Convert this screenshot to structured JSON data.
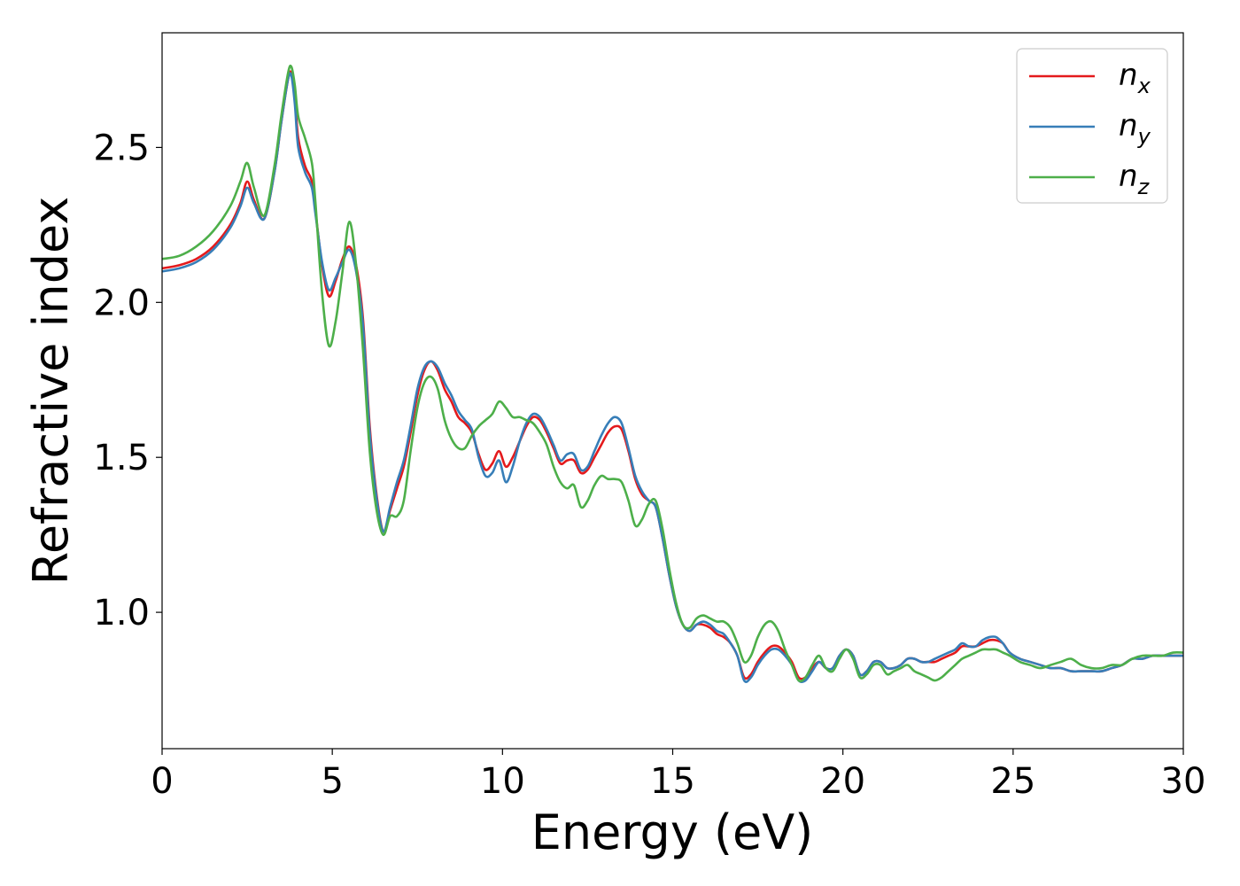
{
  "chart_data": {
    "type": "line",
    "title": "",
    "xlabel": "Energy (eV)",
    "ylabel": "Refractive index",
    "xlim": [
      0,
      30
    ],
    "ylim": [
      0.56,
      2.87
    ],
    "xticks": [
      0,
      5,
      10,
      15,
      20,
      25,
      30
    ],
    "yticks": [
      1.0,
      1.5,
      2.0,
      2.5
    ],
    "xtick_labels": [
      "0",
      "5",
      "10",
      "15",
      "20",
      "25",
      "30"
    ],
    "ytick_labels": [
      "1.0",
      "1.5",
      "2.0",
      "2.5"
    ],
    "grid": false,
    "legend_position": "top-right",
    "series": [
      {
        "name": "n",
        "subscript": "x",
        "color": "#e41a1c",
        "x": [
          0,
          0.5,
          1,
          1.5,
          2,
          2.3,
          2.5,
          2.7,
          3,
          3.3,
          3.5,
          3.7,
          3.8,
          3.9,
          4,
          4.2,
          4.4,
          4.5,
          4.7,
          4.9,
          5.1,
          5.3,
          5.5,
          5.7,
          5.9,
          6.1,
          6.3,
          6.5,
          6.7,
          6.9,
          7.1,
          7.3,
          7.5,
          7.7,
          7.9,
          8.1,
          8.3,
          8.5,
          8.7,
          8.9,
          9.1,
          9.3,
          9.5,
          9.7,
          9.9,
          10.1,
          10.3,
          10.5,
          10.7,
          10.9,
          11.1,
          11.3,
          11.5,
          11.7,
          11.9,
          12.1,
          12.3,
          12.5,
          12.7,
          12.9,
          13.1,
          13.3,
          13.5,
          13.7,
          13.9,
          14.1,
          14.3,
          14.5,
          14.7,
          14.9,
          15.1,
          15.3,
          15.5,
          15.7,
          15.9,
          16.1,
          16.3,
          16.5,
          16.7,
          16.9,
          17.1,
          17.3,
          17.5,
          17.7,
          17.9,
          18.1,
          18.3,
          18.5,
          18.7,
          18.9,
          19.1,
          19.3,
          19.5,
          19.7,
          19.9,
          20.1,
          20.3,
          20.5,
          20.7,
          20.9,
          21.1,
          21.3,
          21.5,
          21.7,
          21.9,
          22.1,
          22.3,
          22.5,
          22.7,
          22.9,
          23.1,
          23.3,
          23.5,
          23.7,
          23.9,
          24.1,
          24.3,
          24.5,
          24.7,
          24.9,
          25.2,
          25.5,
          25.8,
          26.1,
          26.4,
          26.7,
          27,
          27.3,
          27.6,
          27.9,
          28.2,
          28.5,
          28.8,
          29.1,
          29.4,
          29.7,
          30
        ],
        "y": [
          2.11,
          2.12,
          2.14,
          2.18,
          2.25,
          2.32,
          2.39,
          2.33,
          2.27,
          2.42,
          2.58,
          2.72,
          2.74,
          2.66,
          2.53,
          2.44,
          2.39,
          2.3,
          2.12,
          2.02,
          2.07,
          2.14,
          2.18,
          2.12,
          1.95,
          1.6,
          1.38,
          1.26,
          1.33,
          1.4,
          1.47,
          1.58,
          1.7,
          1.78,
          1.81,
          1.78,
          1.72,
          1.68,
          1.63,
          1.61,
          1.58,
          1.51,
          1.46,
          1.48,
          1.52,
          1.47,
          1.5,
          1.55,
          1.6,
          1.63,
          1.62,
          1.58,
          1.53,
          1.48,
          1.49,
          1.49,
          1.45,
          1.46,
          1.5,
          1.54,
          1.58,
          1.6,
          1.59,
          1.52,
          1.43,
          1.38,
          1.36,
          1.34,
          1.24,
          1.12,
          1.02,
          0.96,
          0.94,
          0.96,
          0.96,
          0.95,
          0.93,
          0.92,
          0.9,
          0.86,
          0.79,
          0.8,
          0.84,
          0.87,
          0.89,
          0.89,
          0.87,
          0.84,
          0.79,
          0.79,
          0.82,
          0.84,
          0.82,
          0.82,
          0.86,
          0.88,
          0.86,
          0.8,
          0.81,
          0.84,
          0.84,
          0.82,
          0.82,
          0.83,
          0.85,
          0.85,
          0.84,
          0.84,
          0.84,
          0.85,
          0.86,
          0.87,
          0.89,
          0.89,
          0.89,
          0.9,
          0.91,
          0.91,
          0.9,
          0.87,
          0.85,
          0.84,
          0.83,
          0.82,
          0.82,
          0.81,
          0.81,
          0.81,
          0.81,
          0.82,
          0.83,
          0.85,
          0.85,
          0.86,
          0.86,
          0.86,
          0.86
        ]
      },
      {
        "name": "n",
        "subscript": "y",
        "color": "#377eb8",
        "x": [
          0,
          0.5,
          1,
          1.5,
          2,
          2.3,
          2.5,
          2.7,
          3,
          3.3,
          3.5,
          3.7,
          3.8,
          3.9,
          4,
          4.2,
          4.4,
          4.5,
          4.7,
          4.9,
          5.1,
          5.3,
          5.5,
          5.7,
          5.9,
          6.1,
          6.3,
          6.5,
          6.7,
          6.9,
          7.1,
          7.3,
          7.5,
          7.7,
          7.9,
          8.1,
          8.3,
          8.5,
          8.7,
          8.9,
          9.1,
          9.3,
          9.5,
          9.7,
          9.9,
          10.1,
          10.3,
          10.5,
          10.7,
          10.9,
          11.1,
          11.3,
          11.5,
          11.7,
          11.9,
          12.1,
          12.3,
          12.5,
          12.7,
          12.9,
          13.1,
          13.3,
          13.5,
          13.7,
          13.9,
          14.1,
          14.3,
          14.5,
          14.7,
          14.9,
          15.1,
          15.3,
          15.5,
          15.7,
          15.9,
          16.1,
          16.3,
          16.5,
          16.7,
          16.9,
          17.1,
          17.3,
          17.5,
          17.7,
          17.9,
          18.1,
          18.3,
          18.5,
          18.7,
          18.9,
          19.1,
          19.3,
          19.5,
          19.7,
          19.9,
          20.1,
          20.3,
          20.5,
          20.7,
          20.9,
          21.1,
          21.3,
          21.5,
          21.7,
          21.9,
          22.1,
          22.3,
          22.5,
          22.7,
          22.9,
          23.1,
          23.3,
          23.5,
          23.7,
          23.9,
          24.1,
          24.3,
          24.5,
          24.7,
          24.9,
          25.2,
          25.5,
          25.8,
          26.1,
          26.4,
          26.7,
          27,
          27.3,
          27.6,
          27.9,
          28.2,
          28.5,
          28.8,
          29.1,
          29.4,
          29.7,
          30
        ],
        "y": [
          2.1,
          2.11,
          2.13,
          2.17,
          2.24,
          2.31,
          2.37,
          2.32,
          2.27,
          2.42,
          2.58,
          2.72,
          2.73,
          2.64,
          2.5,
          2.42,
          2.37,
          2.29,
          2.13,
          2.04,
          2.08,
          2.13,
          2.17,
          2.1,
          1.93,
          1.58,
          1.37,
          1.26,
          1.34,
          1.42,
          1.49,
          1.6,
          1.72,
          1.79,
          1.81,
          1.79,
          1.74,
          1.7,
          1.65,
          1.62,
          1.59,
          1.5,
          1.44,
          1.45,
          1.49,
          1.42,
          1.47,
          1.55,
          1.61,
          1.64,
          1.63,
          1.59,
          1.54,
          1.49,
          1.51,
          1.51,
          1.46,
          1.47,
          1.52,
          1.57,
          1.61,
          1.63,
          1.61,
          1.53,
          1.44,
          1.39,
          1.36,
          1.34,
          1.24,
          1.12,
          1.02,
          0.96,
          0.94,
          0.96,
          0.97,
          0.96,
          0.94,
          0.93,
          0.9,
          0.86,
          0.78,
          0.79,
          0.83,
          0.86,
          0.88,
          0.88,
          0.86,
          0.83,
          0.78,
          0.78,
          0.81,
          0.84,
          0.82,
          0.82,
          0.86,
          0.88,
          0.86,
          0.8,
          0.81,
          0.84,
          0.84,
          0.82,
          0.82,
          0.83,
          0.85,
          0.85,
          0.84,
          0.84,
          0.85,
          0.86,
          0.87,
          0.88,
          0.9,
          0.89,
          0.89,
          0.91,
          0.92,
          0.92,
          0.9,
          0.87,
          0.85,
          0.84,
          0.83,
          0.82,
          0.82,
          0.81,
          0.81,
          0.81,
          0.81,
          0.82,
          0.83,
          0.85,
          0.85,
          0.86,
          0.86,
          0.86,
          0.86
        ]
      },
      {
        "name": "n",
        "subscript": "z",
        "color": "#4daf4a",
        "x": [
          0,
          0.5,
          1,
          1.5,
          2,
          2.3,
          2.5,
          2.7,
          3,
          3.3,
          3.5,
          3.7,
          3.8,
          3.9,
          4,
          4.2,
          4.4,
          4.5,
          4.7,
          4.9,
          5.1,
          5.3,
          5.5,
          5.7,
          5.9,
          6.1,
          6.3,
          6.5,
          6.7,
          6.9,
          7.1,
          7.3,
          7.5,
          7.7,
          7.9,
          8.1,
          8.3,
          8.5,
          8.7,
          8.9,
          9.1,
          9.3,
          9.5,
          9.7,
          9.9,
          10.1,
          10.3,
          10.5,
          10.7,
          10.9,
          11.1,
          11.3,
          11.5,
          11.7,
          11.9,
          12.1,
          12.3,
          12.5,
          12.7,
          12.9,
          13.1,
          13.3,
          13.5,
          13.7,
          13.9,
          14.1,
          14.3,
          14.5,
          14.7,
          14.9,
          15.1,
          15.3,
          15.5,
          15.7,
          15.9,
          16.1,
          16.3,
          16.5,
          16.7,
          16.9,
          17.1,
          17.3,
          17.5,
          17.7,
          17.9,
          18.1,
          18.3,
          18.5,
          18.7,
          18.9,
          19.1,
          19.3,
          19.5,
          19.7,
          19.9,
          20.1,
          20.3,
          20.5,
          20.7,
          20.9,
          21.1,
          21.3,
          21.5,
          21.7,
          21.9,
          22.1,
          22.3,
          22.5,
          22.7,
          22.9,
          23.1,
          23.3,
          23.5,
          23.7,
          23.9,
          24.1,
          24.3,
          24.5,
          24.7,
          24.9,
          25.2,
          25.5,
          25.8,
          26.1,
          26.4,
          26.7,
          27,
          27.3,
          27.6,
          27.9,
          28.2,
          28.5,
          28.8,
          29.1,
          29.4,
          29.7,
          30
        ],
        "y": [
          2.14,
          2.15,
          2.18,
          2.23,
          2.31,
          2.39,
          2.45,
          2.37,
          2.28,
          2.44,
          2.6,
          2.74,
          2.76,
          2.7,
          2.6,
          2.53,
          2.45,
          2.33,
          2.03,
          1.86,
          1.94,
          2.1,
          2.26,
          2.12,
          1.85,
          1.52,
          1.33,
          1.25,
          1.31,
          1.31,
          1.36,
          1.52,
          1.66,
          1.74,
          1.76,
          1.72,
          1.62,
          1.56,
          1.53,
          1.53,
          1.57,
          1.6,
          1.62,
          1.64,
          1.68,
          1.66,
          1.63,
          1.63,
          1.62,
          1.61,
          1.58,
          1.54,
          1.47,
          1.42,
          1.4,
          1.41,
          1.34,
          1.36,
          1.41,
          1.44,
          1.43,
          1.43,
          1.42,
          1.36,
          1.28,
          1.3,
          1.35,
          1.36,
          1.27,
          1.14,
          1.03,
          0.96,
          0.95,
          0.98,
          0.99,
          0.98,
          0.97,
          0.97,
          0.95,
          0.9,
          0.84,
          0.86,
          0.92,
          0.96,
          0.97,
          0.94,
          0.88,
          0.83,
          0.78,
          0.79,
          0.83,
          0.86,
          0.82,
          0.81,
          0.85,
          0.88,
          0.85,
          0.79,
          0.8,
          0.83,
          0.83,
          0.8,
          0.81,
          0.82,
          0.83,
          0.81,
          0.8,
          0.79,
          0.78,
          0.79,
          0.81,
          0.83,
          0.85,
          0.86,
          0.87,
          0.88,
          0.88,
          0.88,
          0.87,
          0.86,
          0.84,
          0.83,
          0.82,
          0.83,
          0.84,
          0.85,
          0.83,
          0.82,
          0.82,
          0.83,
          0.83,
          0.85,
          0.86,
          0.86,
          0.86,
          0.87,
          0.87
        ]
      }
    ]
  }
}
